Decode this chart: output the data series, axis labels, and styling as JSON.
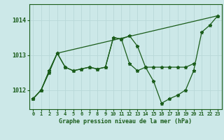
{
  "title": "Graphe pression niveau de la mer (hPa)",
  "bg_color": "#cce8e8",
  "grid_color": "#b8d8d8",
  "line_color": "#1a5c1a",
  "xlim": [
    -0.5,
    23.5
  ],
  "ylim": [
    1011.45,
    1014.45
  ],
  "yticks": [
    1012,
    1013,
    1014
  ],
  "xticks": [
    0,
    1,
    2,
    3,
    4,
    5,
    6,
    7,
    8,
    9,
    10,
    11,
    12,
    13,
    14,
    15,
    16,
    17,
    18,
    19,
    20,
    21,
    22,
    23
  ],
  "series": [
    {
      "x": [
        0,
        1,
        2,
        3,
        23
      ],
      "y": [
        1011.75,
        1012.0,
        1012.5,
        1013.05,
        1014.12
      ]
    },
    {
      "x": [
        0,
        1,
        2,
        3,
        4,
        5,
        6,
        7,
        8,
        9,
        10,
        11,
        12,
        13,
        14,
        15,
        16,
        17,
        18,
        19,
        20,
        21,
        22,
        23
      ],
      "y": [
        1011.75,
        1012.0,
        1012.55,
        1013.05,
        1012.65,
        1012.55,
        1012.6,
        1012.65,
        1012.6,
        1012.65,
        1013.5,
        1013.45,
        1013.55,
        1013.25,
        1012.65,
        1012.25,
        1011.62,
        1011.75,
        1011.85,
        1012.0,
        1012.55,
        1013.65,
        1013.85,
        1014.12
      ]
    },
    {
      "x": [
        0,
        1,
        2,
        3,
        4,
        5,
        6,
        7,
        8,
        9,
        10,
        11,
        12,
        13,
        14,
        15,
        16,
        17,
        18,
        19,
        20
      ],
      "y": [
        1011.75,
        1012.0,
        1012.55,
        1013.05,
        1012.65,
        1012.55,
        1012.6,
        1012.65,
        1012.6,
        1012.65,
        1013.5,
        1013.45,
        1012.75,
        1012.55,
        1012.65,
        1012.65,
        1012.65,
        1012.65,
        1012.65,
        1012.65,
        1012.75
      ]
    }
  ]
}
